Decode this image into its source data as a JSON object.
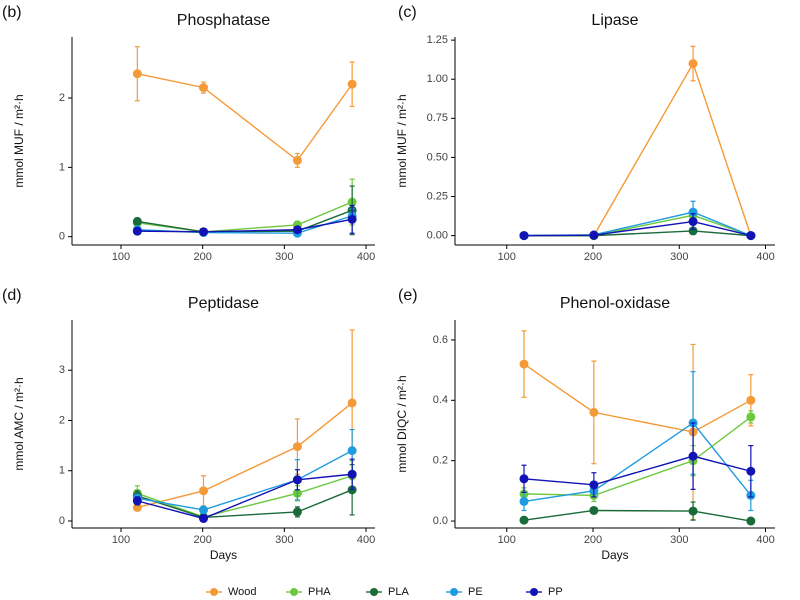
{
  "chart_data": [
    {
      "type": "line",
      "panel": "(b)",
      "title": "Phosphatase",
      "y_label": "mmol MUF / m²·h",
      "x": [
        120,
        201,
        316,
        383
      ],
      "xlim": [
        40,
        411
      ],
      "xticks": [
        100,
        200,
        300,
        400
      ],
      "ylim": [
        -0.12,
        2.88
      ],
      "yticks": [
        0,
        1,
        2
      ],
      "series": [
        {
          "name": "Wood",
          "color": "#f59a38",
          "values": [
            2.35,
            2.15,
            1.1,
            2.2
          ],
          "errors": [
            0.39,
            0.08,
            0.1,
            0.32
          ]
        },
        {
          "name": "PHA",
          "color": "#6cc93f",
          "values": [
            0.2,
            0.07,
            0.17,
            0.5
          ],
          "errors": [
            0.05,
            0.02,
            0.05,
            0.33
          ]
        },
        {
          "name": "PLA",
          "color": "#1a6b3a",
          "values": [
            0.22,
            0.07,
            0.08,
            0.38
          ],
          "errors": [
            0.03,
            0.02,
            0.03,
            0.35
          ]
        },
        {
          "name": "PE",
          "color": "#1f9be0",
          "values": [
            0.1,
            0.06,
            0.05,
            0.3
          ],
          "errors": [
            0.02,
            0.02,
            0.02,
            0.1
          ]
        },
        {
          "name": "PP",
          "color": "#1212b5",
          "values": [
            0.08,
            0.07,
            0.1,
            0.25
          ],
          "errors": [
            0.02,
            0.02,
            0.03,
            0.2
          ]
        }
      ]
    },
    {
      "type": "line",
      "panel": "(c)",
      "title": "Lipase",
      "y_label": "mmol MUF / m²·h",
      "x": [
        120,
        201,
        316,
        383
      ],
      "xlim": [
        40,
        411
      ],
      "xticks": [
        100,
        200,
        300,
        400
      ],
      "ylim": [
        -0.06,
        1.27
      ],
      "yticks": [
        {
          "value": 0,
          "label": "0.00"
        },
        0.25,
        {
          "value": 0.5,
          "label": "0.50"
        },
        0.75,
        {
          "value": 1,
          "label": "1.00"
        },
        1.25
      ],
      "series": [
        {
          "name": "Wood",
          "color": "#f59a38",
          "values": [
            0,
            0,
            1.1,
            0
          ],
          "errors": [
            0,
            0,
            0.11,
            0
          ]
        },
        {
          "name": "PHA",
          "color": "#6cc93f",
          "values": [
            0,
            0,
            0.13,
            0
          ],
          "errors": [
            0,
            0,
            0.03,
            0
          ]
        },
        {
          "name": "PLA",
          "color": "#1a6b3a",
          "values": [
            0,
            0,
            0.03,
            0
          ],
          "errors": [
            0,
            0,
            0.01,
            0
          ]
        },
        {
          "name": "PE",
          "color": "#1f9be0",
          "values": [
            0,
            0.005,
            0.15,
            0
          ],
          "errors": [
            0,
            0.005,
            0.07,
            0
          ]
        },
        {
          "name": "PP",
          "color": "#1212b5",
          "values": [
            0,
            0.003,
            0.09,
            0
          ],
          "errors": [
            0,
            0.003,
            0.05,
            0
          ]
        }
      ]
    },
    {
      "type": "line",
      "panel": "(d)",
      "title": "Peptidase",
      "y_label": "mmol AMC / m²·h",
      "x_label": "Days",
      "x": [
        120,
        201,
        316,
        383
      ],
      "xlim": [
        40,
        411
      ],
      "xticks": [
        100,
        200,
        300,
        400
      ],
      "ylim": [
        -0.14,
        4.0
      ],
      "yticks": [
        0,
        1,
        2,
        3
      ],
      "series": [
        {
          "name": "Wood",
          "color": "#f59a38",
          "values": [
            0.27,
            0.6,
            1.48,
            2.35
          ],
          "errors": [
            0.05,
            0.3,
            0.55,
            1.45
          ]
        },
        {
          "name": "PHA",
          "color": "#6cc93f",
          "values": [
            0.55,
            0.08,
            0.55,
            0.9
          ],
          "errors": [
            0.15,
            0.03,
            0.15,
            0.3
          ]
        },
        {
          "name": "PLA",
          "color": "#1a6b3a",
          "values": [
            0.5,
            0.07,
            0.18,
            0.62
          ],
          "errors": [
            0.1,
            0.03,
            0.1,
            0.5
          ]
        },
        {
          "name": "PE",
          "color": "#1f9be0",
          "values": [
            0.45,
            0.22,
            0.82,
            1.4
          ],
          "errors": [
            0.08,
            0.05,
            0.4,
            0.42
          ]
        },
        {
          "name": "PP",
          "color": "#1212b5",
          "values": [
            0.4,
            0.05,
            0.82,
            0.93
          ],
          "errors": [
            0.08,
            0.03,
            0.2,
            0.3
          ]
        }
      ]
    },
    {
      "type": "line",
      "panel": "(e)",
      "title": "Phenol-oxidase",
      "y_label": "mmol DIQC / m²·h",
      "x_label": "Days",
      "x": [
        120,
        201,
        316,
        383
      ],
      "xlim": [
        40,
        411
      ],
      "xticks": [
        100,
        200,
        300,
        400
      ],
      "ylim": [
        -0.023,
        0.666
      ],
      "yticks": [
        {
          "value": 0,
          "label": "0.0"
        },
        0.2,
        0.4,
        0.6
      ],
      "series": [
        {
          "name": "Wood",
          "color": "#f59a38",
          "values": [
            0.52,
            0.36,
            0.295,
            0.4
          ],
          "errors": [
            0.11,
            0.17,
            0.29,
            0.085
          ]
        },
        {
          "name": "PHA",
          "color": "#6cc93f",
          "values": [
            0.09,
            0.085,
            0.2,
            0.345
          ],
          "errors": [
            0.02,
            0.02,
            0.05,
            0.02
          ]
        },
        {
          "name": "PLA",
          "color": "#1a6b3a",
          "values": [
            0.003,
            0.035,
            0.033,
            0
          ],
          "errors": [
            0.005,
            0.01,
            0.03,
            0.005
          ]
        },
        {
          "name": "PE",
          "color": "#1f9be0",
          "values": [
            0.065,
            0.1,
            0.325,
            0.085
          ],
          "errors": [
            0.03,
            0.02,
            0.17,
            0.05
          ]
        },
        {
          "name": "PP",
          "color": "#1212b5",
          "values": [
            0.14,
            0.12,
            0.215,
            0.165
          ],
          "errors": [
            0.045,
            0.04,
            0.11,
            0.085
          ]
        }
      ]
    }
  ]
}
